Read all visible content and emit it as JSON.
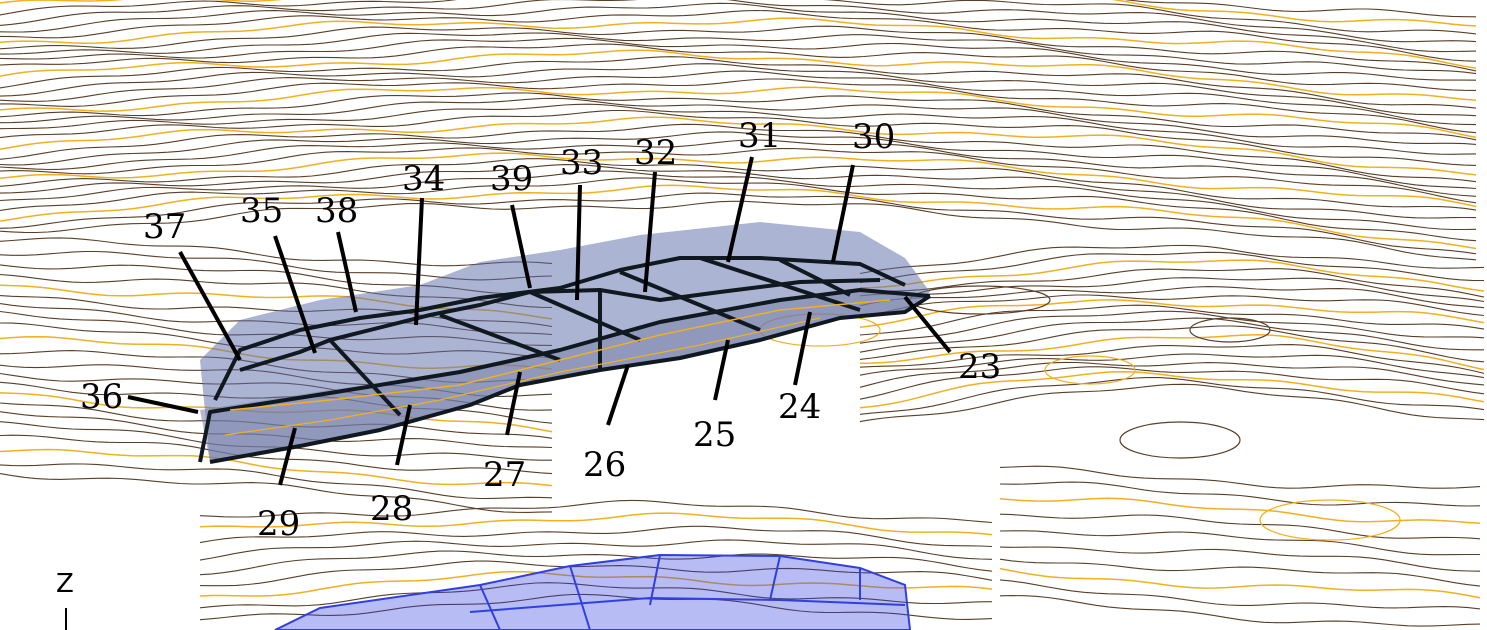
{
  "colors": {
    "contour_brown": "#5a3f28",
    "contour_gold": "#f0b020",
    "block_fill": "#5a6aa8",
    "block_edge": "#101820",
    "lower_block": "#3040e0",
    "leader": "#000000"
  },
  "blocks": [
    {
      "id": "23"
    },
    {
      "id": "24"
    },
    {
      "id": "25"
    },
    {
      "id": "26"
    },
    {
      "id": "27"
    },
    {
      "id": "28"
    },
    {
      "id": "29"
    },
    {
      "id": "30"
    },
    {
      "id": "31"
    },
    {
      "id": "32"
    },
    {
      "id": "33"
    },
    {
      "id": "34"
    },
    {
      "id": "35"
    },
    {
      "id": "36"
    },
    {
      "id": "37"
    },
    {
      "id": "38"
    },
    {
      "id": "39"
    }
  ],
  "axis": {
    "label": "Z"
  }
}
